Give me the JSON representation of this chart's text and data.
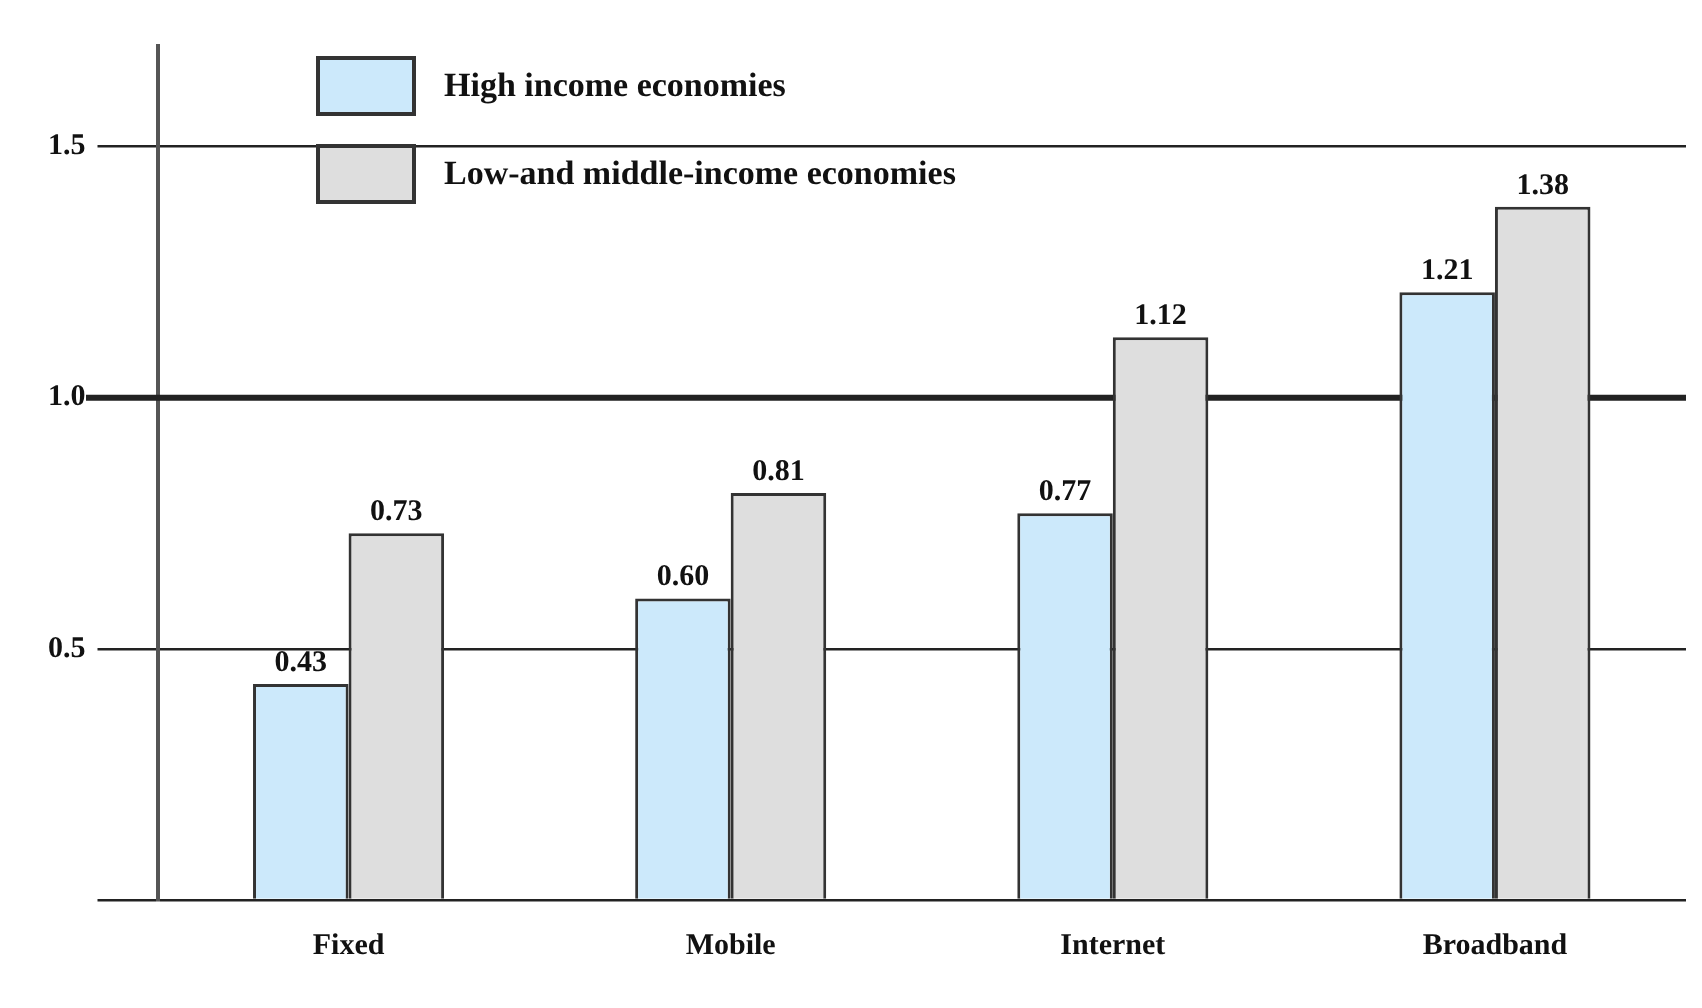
{
  "chart_data": {
    "type": "bar",
    "categories": [
      "Fixed",
      "Mobile",
      "Internet",
      "Broadband"
    ],
    "series": [
      {
        "name": "High income economies",
        "color": "#cce9fb",
        "values": [
          0.43,
          0.6,
          0.77,
          1.21
        ],
        "value_labels": [
          "0.43",
          "0.60",
          "0.77",
          "1.21"
        ]
      },
      {
        "name": "Low-and middle-income economies",
        "color": "#dedede",
        "values": [
          0.73,
          0.81,
          1.12,
          1.38
        ],
        "value_labels": [
          "0.73",
          "0.81",
          "1.12",
          "1.38"
        ]
      }
    ],
    "ylim": [
      0,
      1.7
    ],
    "yticks": [
      {
        "value": 0,
        "label": null
      },
      0.5,
      {
        "value": 1,
        "label": "1.0"
      },
      1.5
    ],
    "grid": "y",
    "legend": "top left",
    "ref_lines": [
      {
        "axis": "y",
        "value": 1,
        "color": "#222222"
      }
    ]
  }
}
